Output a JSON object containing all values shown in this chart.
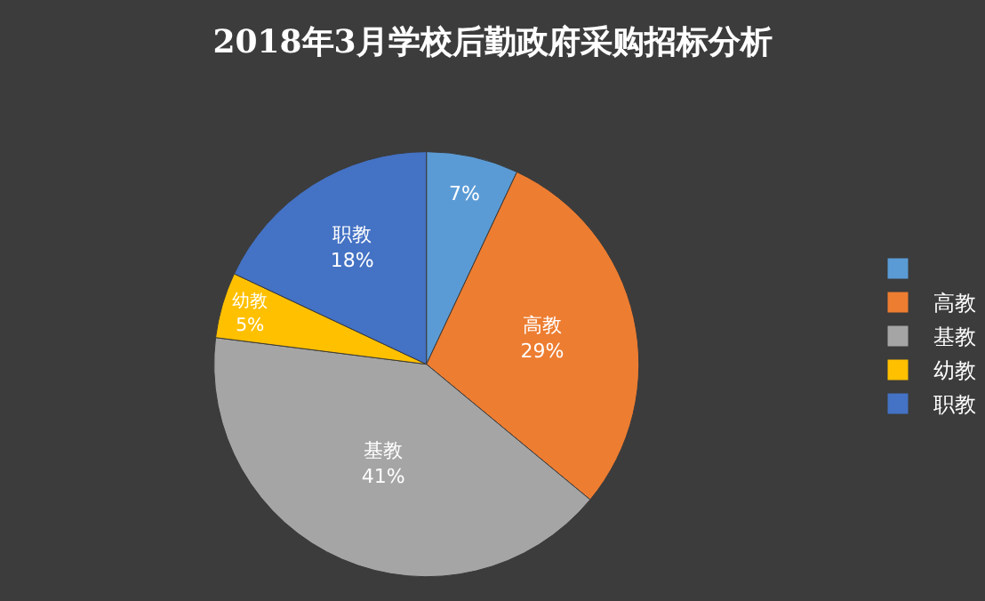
{
  "chart_data": {
    "type": "pie",
    "title": "2018年3月学校后勤政府采购招标分析",
    "categories": [
      null,
      "高教",
      "基教",
      "幼教",
      "职教"
    ],
    "values": [
      7,
      29,
      41,
      5,
      18
    ],
    "value_labels": [
      "7%",
      "29%",
      "41%",
      "5%",
      "18%"
    ],
    "colors": [
      "#5b9bd5",
      "#ed7d31",
      "#a5a5a5",
      "#ffc000",
      "#4472c4"
    ],
    "legend": "right"
  }
}
